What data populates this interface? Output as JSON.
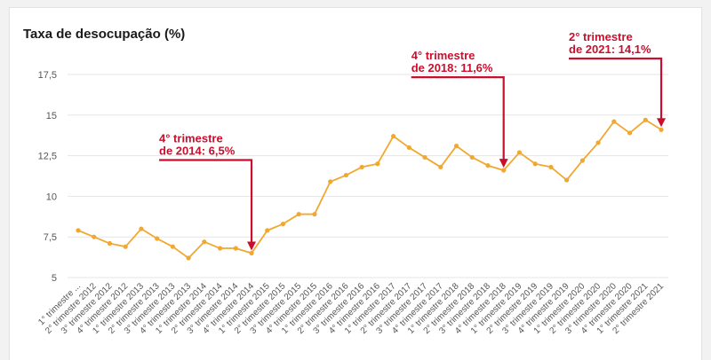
{
  "chart_data": {
    "type": "line",
    "title": "Taxa de desocupação (%)",
    "xlabel": "",
    "ylabel": "",
    "ylim": [
      5,
      17.5
    ],
    "yticks": [
      "5",
      "7,5",
      "10",
      "12,5",
      "15",
      "17,5"
    ],
    "grid": true,
    "line_color": "#f0a830",
    "annotation_color": "#c8102e",
    "categories": [
      "1° trimestre ...",
      "2° trimestre 2012",
      "3° trimestre 2012",
      "4° trimestre 2012",
      "1° trimestre 2013",
      "2° trimestre 2013",
      "3° trimestre 2013",
      "4° trimestre 2013",
      "1° trimestre 2014",
      "2° trimestre 2014",
      "3° trimestre 2014",
      "4° trimestre 2014",
      "1° trimestre 2015",
      "2° trimestre 2015",
      "3° trimestre 2015",
      "4° trimestre 2015",
      "1° trimestre 2016",
      "2° trimestre 2016",
      "3° trimestre 2016",
      "4° trimestre 2016",
      "1° trimestre 2017",
      "2° trimestre 2017",
      "3° trimestre 2017",
      "4° trimestre 2017",
      "1° trimestre 2018",
      "2° trimestre 2018",
      "3° trimestre 2018",
      "4° trimestre 2018",
      "1° trimestre 2019",
      "2° trimestre 2019",
      "3° trimestre 2019",
      "4° trimestre 2019",
      "1° trimestre 2020",
      "2° trimestre 2020",
      "3° trimestre 2020",
      "4° trimestre 2020",
      "1° trimestre 2021",
      "2° trimestre 2021"
    ],
    "values": [
      7.9,
      7.5,
      7.1,
      6.9,
      8.0,
      7.4,
      6.9,
      6.2,
      7.2,
      6.8,
      6.8,
      6.5,
      7.9,
      8.3,
      8.9,
      8.9,
      10.9,
      11.3,
      11.8,
      12.0,
      13.7,
      13.0,
      12.4,
      11.8,
      13.1,
      12.4,
      11.9,
      11.6,
      12.7,
      12.0,
      11.8,
      11.0,
      12.2,
      13.3,
      14.6,
      13.9,
      14.7,
      14.1
    ],
    "annotations": [
      {
        "index": 11,
        "lines": [
          "4° trimestre",
          "de 2014: 6,5%"
        ]
      },
      {
        "index": 27,
        "lines": [
          "4° trimestre",
          "de 2018: 11,6%"
        ]
      },
      {
        "index": 37,
        "lines": [
          "2° trimestre",
          "de 2021: 14,1%"
        ]
      }
    ]
  }
}
